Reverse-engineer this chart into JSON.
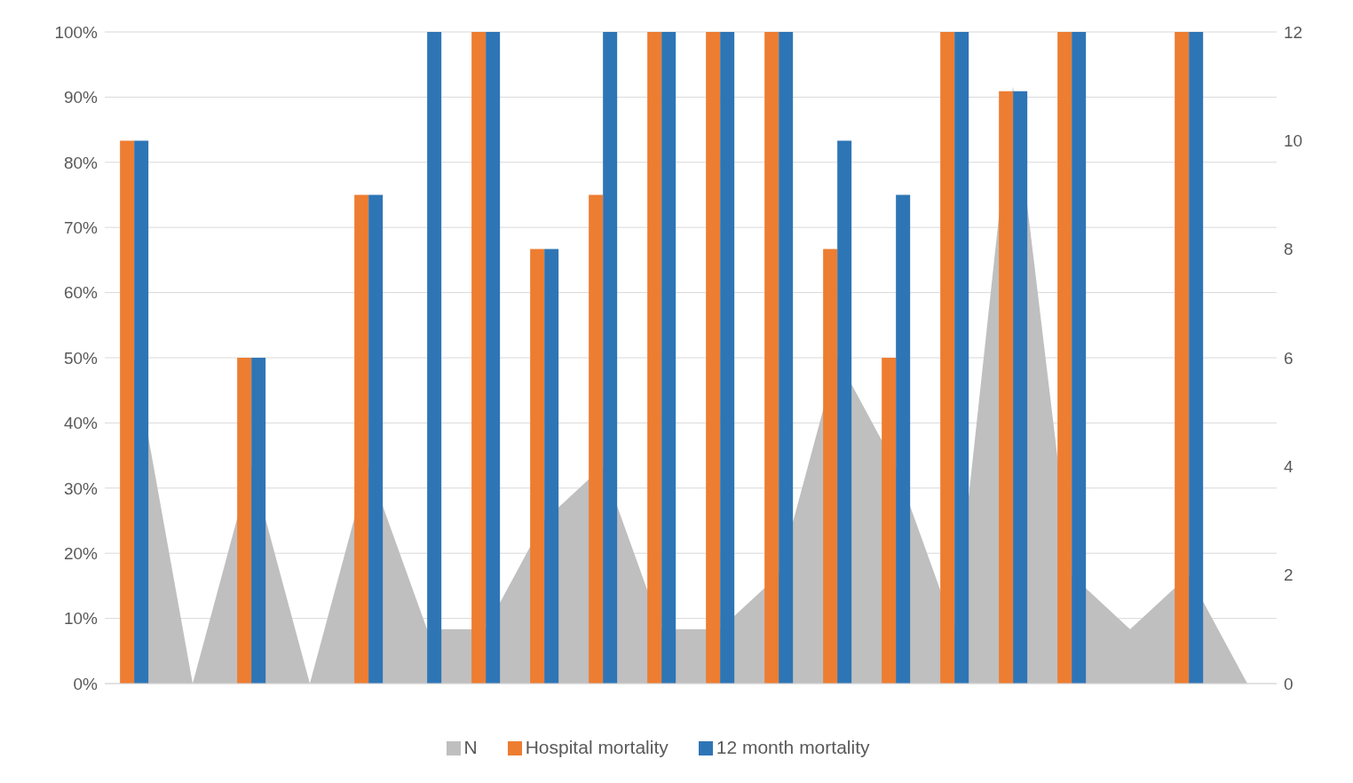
{
  "chart_data": {
    "type": "bar",
    "categories": [
      null,
      null,
      null,
      null,
      null,
      null,
      null,
      null,
      null,
      null,
      null,
      null,
      null,
      null,
      null,
      null,
      null,
      null,
      null,
      null
    ],
    "series": [
      {
        "name": "N",
        "type": "area",
        "axis": "y2",
        "color": "#bfbfbf",
        "values": [
          6,
          0,
          4,
          0,
          4,
          1,
          1,
          3,
          4,
          1,
          1,
          2,
          6,
          4,
          1,
          11,
          2,
          1,
          2,
          0
        ]
      },
      {
        "name": "Hospital mortality",
        "color": "#ed7d31",
        "values": [
          83.3,
          null,
          50,
          null,
          75,
          0,
          100,
          66.7,
          75,
          100,
          100,
          100,
          66.7,
          50,
          100,
          90.9,
          100,
          0,
          100,
          null
        ]
      },
      {
        "name": "12 month mortality",
        "color": "#2e75b6",
        "values": [
          83.3,
          null,
          50,
          null,
          75,
          100,
          100,
          66.7,
          100,
          100,
          100,
          100,
          83.3,
          75,
          100,
          90.9,
          100,
          0,
          100,
          null
        ]
      }
    ],
    "ylim": [
      0,
      100
    ],
    "yticks": [
      {
        "value": 0,
        "label": "0%"
      },
      {
        "value": 10,
        "label": "10%"
      },
      {
        "value": 20,
        "label": "20%"
      },
      {
        "value": 30,
        "label": "30%"
      },
      {
        "value": 40,
        "label": "40%"
      },
      {
        "value": 50,
        "label": "50%"
      },
      {
        "value": 60,
        "label": "60%"
      },
      {
        "value": 70,
        "label": "70%"
      },
      {
        "value": 80,
        "label": "80%"
      },
      {
        "value": 90,
        "label": "90%"
      },
      {
        "value": 100,
        "label": "100%"
      }
    ],
    "y2lim": [
      0,
      12
    ],
    "y2ticks": [
      0,
      2,
      4,
      6,
      8,
      10,
      12
    ],
    "grid": "y",
    "legend": "bottom"
  }
}
